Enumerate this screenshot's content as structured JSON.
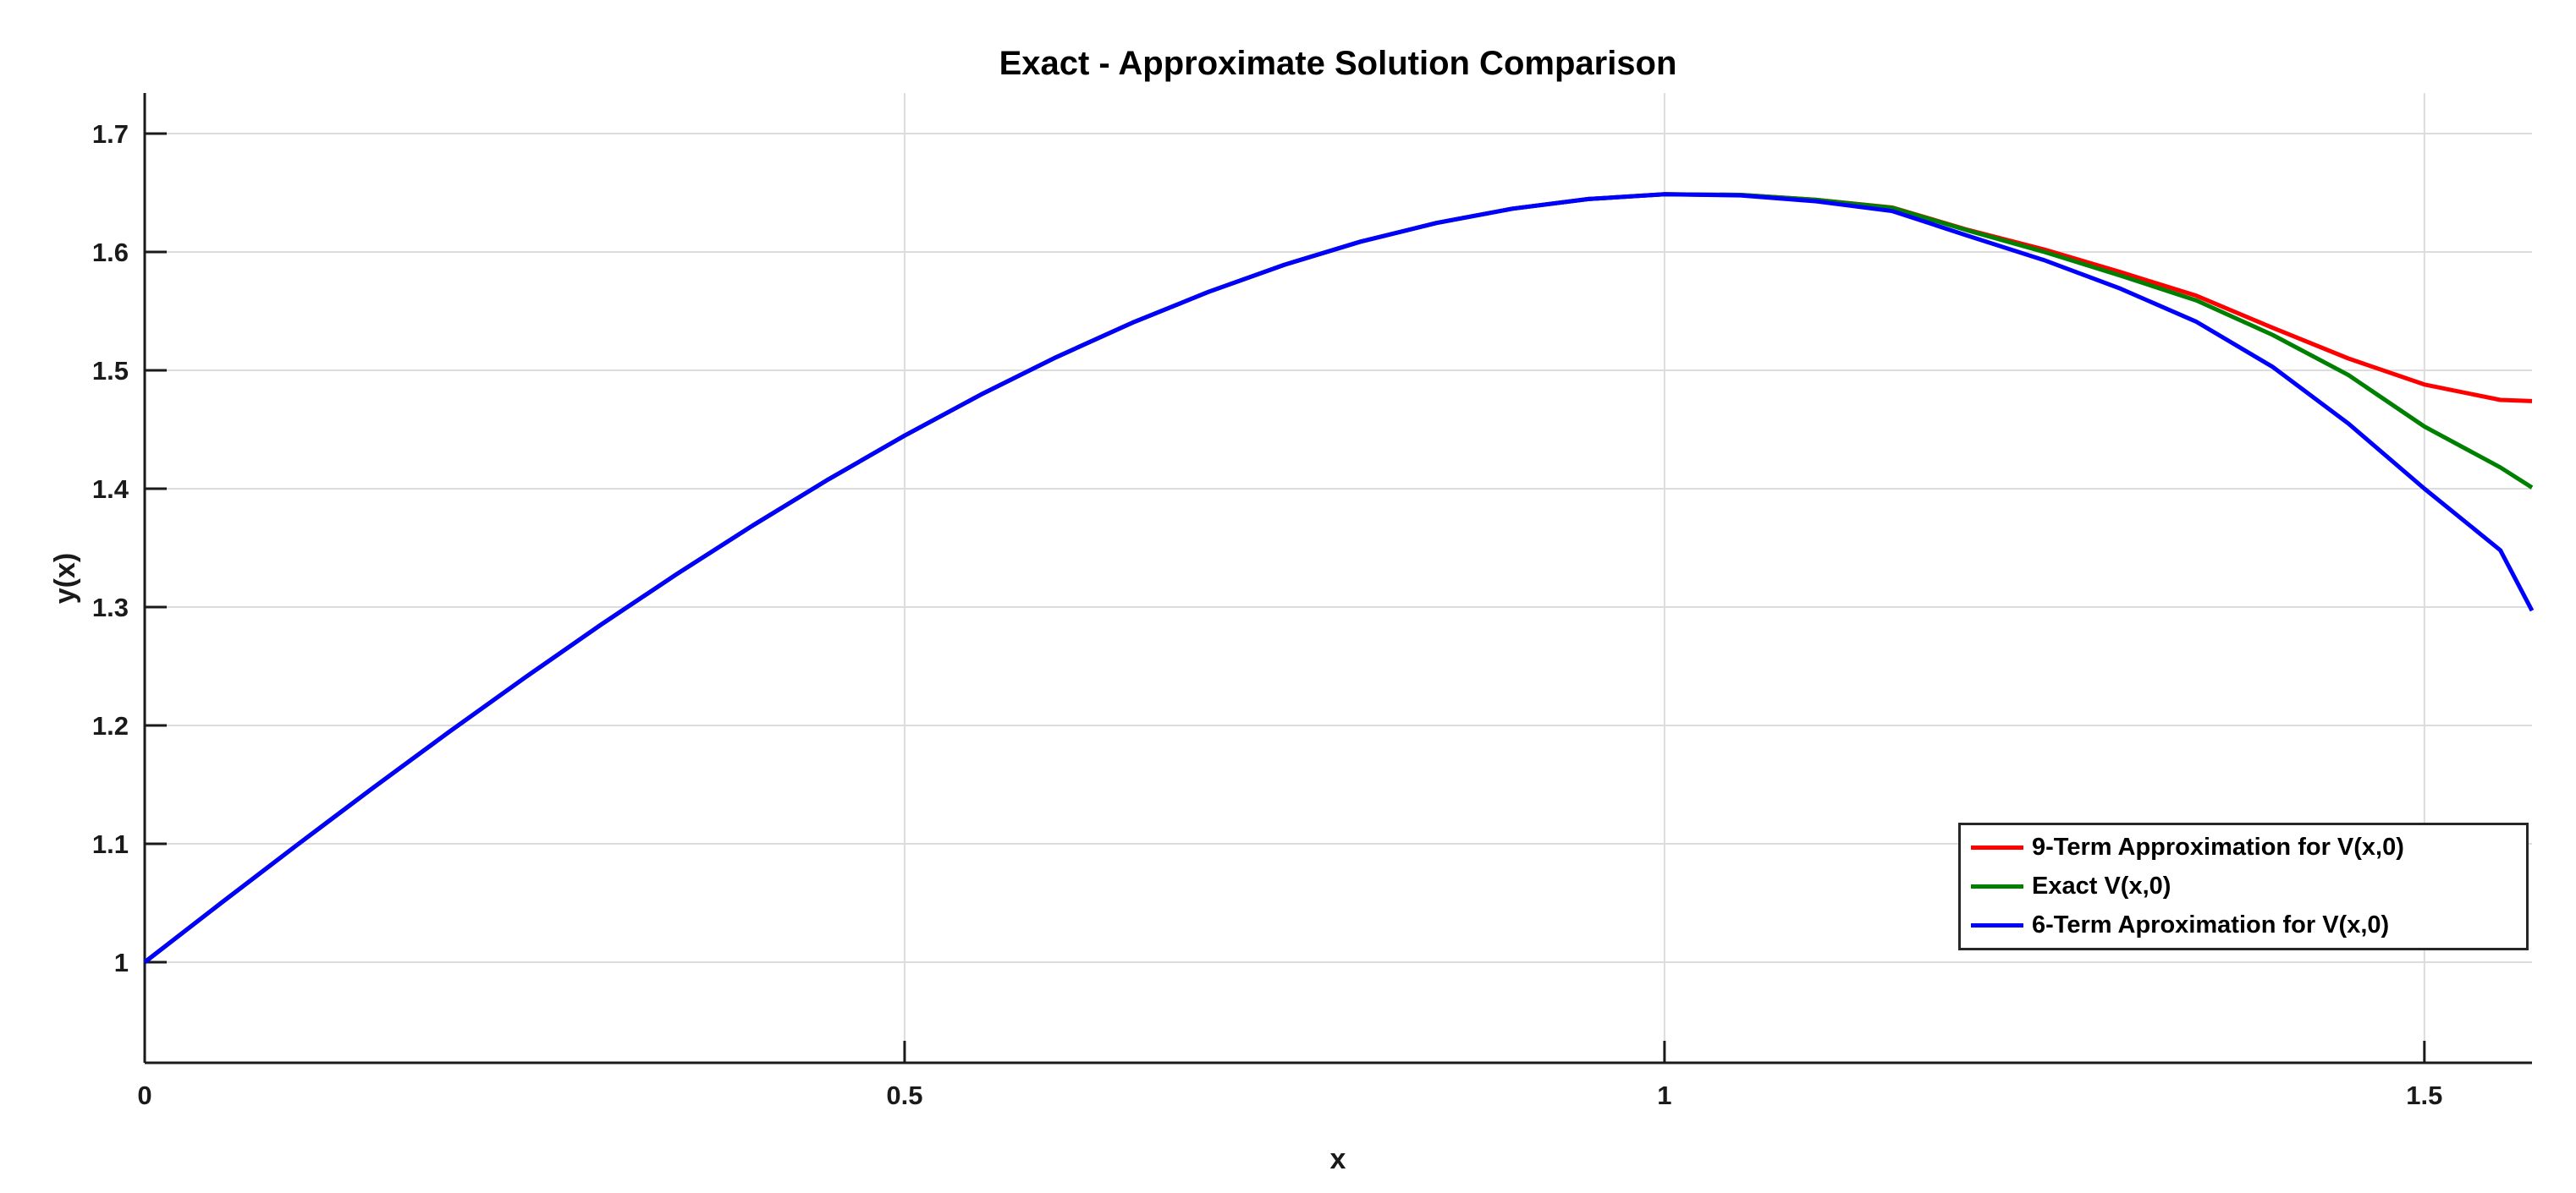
{
  "figure": {
    "background": "#ffffff"
  },
  "chart_data": {
    "type": "line",
    "title": "Exact - Approximate Solution Comparison",
    "xlabel": "x",
    "ylabel": "y(x)",
    "xlim": [
      0,
      1.5708
    ],
    "ylim": [
      0.915,
      1.7343
    ],
    "grid": true,
    "grid_color": "#dcdcdc",
    "axis_color": "#1a1a1a",
    "xticks": {
      "values": [
        0,
        0.5,
        1,
        1.5
      ],
      "labels": [
        "0",
        "0.5",
        "1",
        "1.5"
      ]
    },
    "yticks": {
      "values": [
        1,
        1.1,
        1.2,
        1.3,
        1.4,
        1.5,
        1.6,
        1.7
      ],
      "labels": [
        "1",
        "1.1",
        "1.2",
        "1.3",
        "1.4",
        "1.5",
        "1.6",
        "1.7"
      ]
    },
    "legend": {
      "location": "southeast",
      "border_color": "#262626",
      "background": "#ffffff"
    },
    "series": [
      {
        "name": "9-Term Approximation for V(x,0)",
        "color": "#ff0000",
        "points": [
          [
            0,
            1.0
          ],
          [
            0.05,
            1.0497
          ],
          [
            0.1,
            1.0988
          ],
          [
            0.15,
            1.1471
          ],
          [
            0.2,
            1.1943
          ],
          [
            0.25,
            1.2403
          ],
          [
            0.3,
            1.2849
          ],
          [
            0.35,
            1.3278
          ],
          [
            0.4,
            1.3689
          ],
          [
            0.45,
            1.408
          ],
          [
            0.5,
            1.4449
          ],
          [
            0.55,
            1.4794
          ],
          [
            0.6,
            1.5112
          ],
          [
            0.65,
            1.5403
          ],
          [
            0.7,
            1.5663
          ],
          [
            0.75,
            1.5892
          ],
          [
            0.8,
            1.6087
          ],
          [
            0.85,
            1.6245
          ],
          [
            0.9,
            1.6366
          ],
          [
            0.95,
            1.6447
          ],
          [
            1.0,
            1.6487
          ],
          [
            1.05,
            1.6482
          ],
          [
            1.1,
            1.644
          ],
          [
            1.15,
            1.6375
          ],
          [
            1.2,
            1.6185
          ],
          [
            1.25,
            1.602
          ],
          [
            1.3,
            1.583
          ],
          [
            1.35,
            1.563
          ],
          [
            1.4,
            1.536
          ],
          [
            1.45,
            1.51
          ],
          [
            1.5,
            1.488
          ],
          [
            1.55,
            1.475
          ],
          [
            1.5708,
            1.474
          ]
        ]
      },
      {
        "name": "Exact V(x,0)",
        "color": "#008000",
        "points": [
          [
            0,
            1.0
          ],
          [
            0.05,
            1.0497
          ],
          [
            0.1,
            1.0988
          ],
          [
            0.15,
            1.1471
          ],
          [
            0.2,
            1.1943
          ],
          [
            0.25,
            1.2403
          ],
          [
            0.3,
            1.2849
          ],
          [
            0.35,
            1.3278
          ],
          [
            0.4,
            1.3689
          ],
          [
            0.45,
            1.408
          ],
          [
            0.5,
            1.4449
          ],
          [
            0.55,
            1.4794
          ],
          [
            0.6,
            1.5112
          ],
          [
            0.65,
            1.5403
          ],
          [
            0.7,
            1.5663
          ],
          [
            0.75,
            1.5892
          ],
          [
            0.8,
            1.6087
          ],
          [
            0.85,
            1.6245
          ],
          [
            0.9,
            1.6366
          ],
          [
            0.95,
            1.6447
          ],
          [
            1.0,
            1.6487
          ],
          [
            1.05,
            1.6482
          ],
          [
            1.1,
            1.644
          ],
          [
            1.15,
            1.6372
          ],
          [
            1.2,
            1.618
          ],
          [
            1.25,
            1.6
          ],
          [
            1.3,
            1.58
          ],
          [
            1.35,
            1.559
          ],
          [
            1.4,
            1.53
          ],
          [
            1.45,
            1.496
          ],
          [
            1.5,
            1.4525
          ],
          [
            1.55,
            1.418
          ],
          [
            1.5708,
            1.401
          ]
        ]
      },
      {
        "name": "6-Term Aproximation for V(x,0)",
        "color": "#0000ff",
        "points": [
          [
            0,
            1.0
          ],
          [
            0.05,
            1.0497
          ],
          [
            0.1,
            1.0988
          ],
          [
            0.15,
            1.1471
          ],
          [
            0.2,
            1.1943
          ],
          [
            0.25,
            1.2403
          ],
          [
            0.3,
            1.2849
          ],
          [
            0.35,
            1.3278
          ],
          [
            0.4,
            1.3689
          ],
          [
            0.45,
            1.408
          ],
          [
            0.5,
            1.4449
          ],
          [
            0.55,
            1.4794
          ],
          [
            0.6,
            1.5112
          ],
          [
            0.65,
            1.5403
          ],
          [
            0.7,
            1.5663
          ],
          [
            0.75,
            1.5892
          ],
          [
            0.8,
            1.6087
          ],
          [
            0.85,
            1.6245
          ],
          [
            0.9,
            1.6366
          ],
          [
            0.95,
            1.6447
          ],
          [
            1.0,
            1.6487
          ],
          [
            1.05,
            1.6478
          ],
          [
            1.1,
            1.6428
          ],
          [
            1.15,
            1.6345
          ],
          [
            1.2,
            1.6135
          ],
          [
            1.25,
            1.593
          ],
          [
            1.3,
            1.569
          ],
          [
            1.35,
            1.541
          ],
          [
            1.4,
            1.503
          ],
          [
            1.45,
            1.455
          ],
          [
            1.5,
            1.4
          ],
          [
            1.55,
            1.348
          ],
          [
            1.5708,
            1.297
          ]
        ]
      }
    ]
  }
}
